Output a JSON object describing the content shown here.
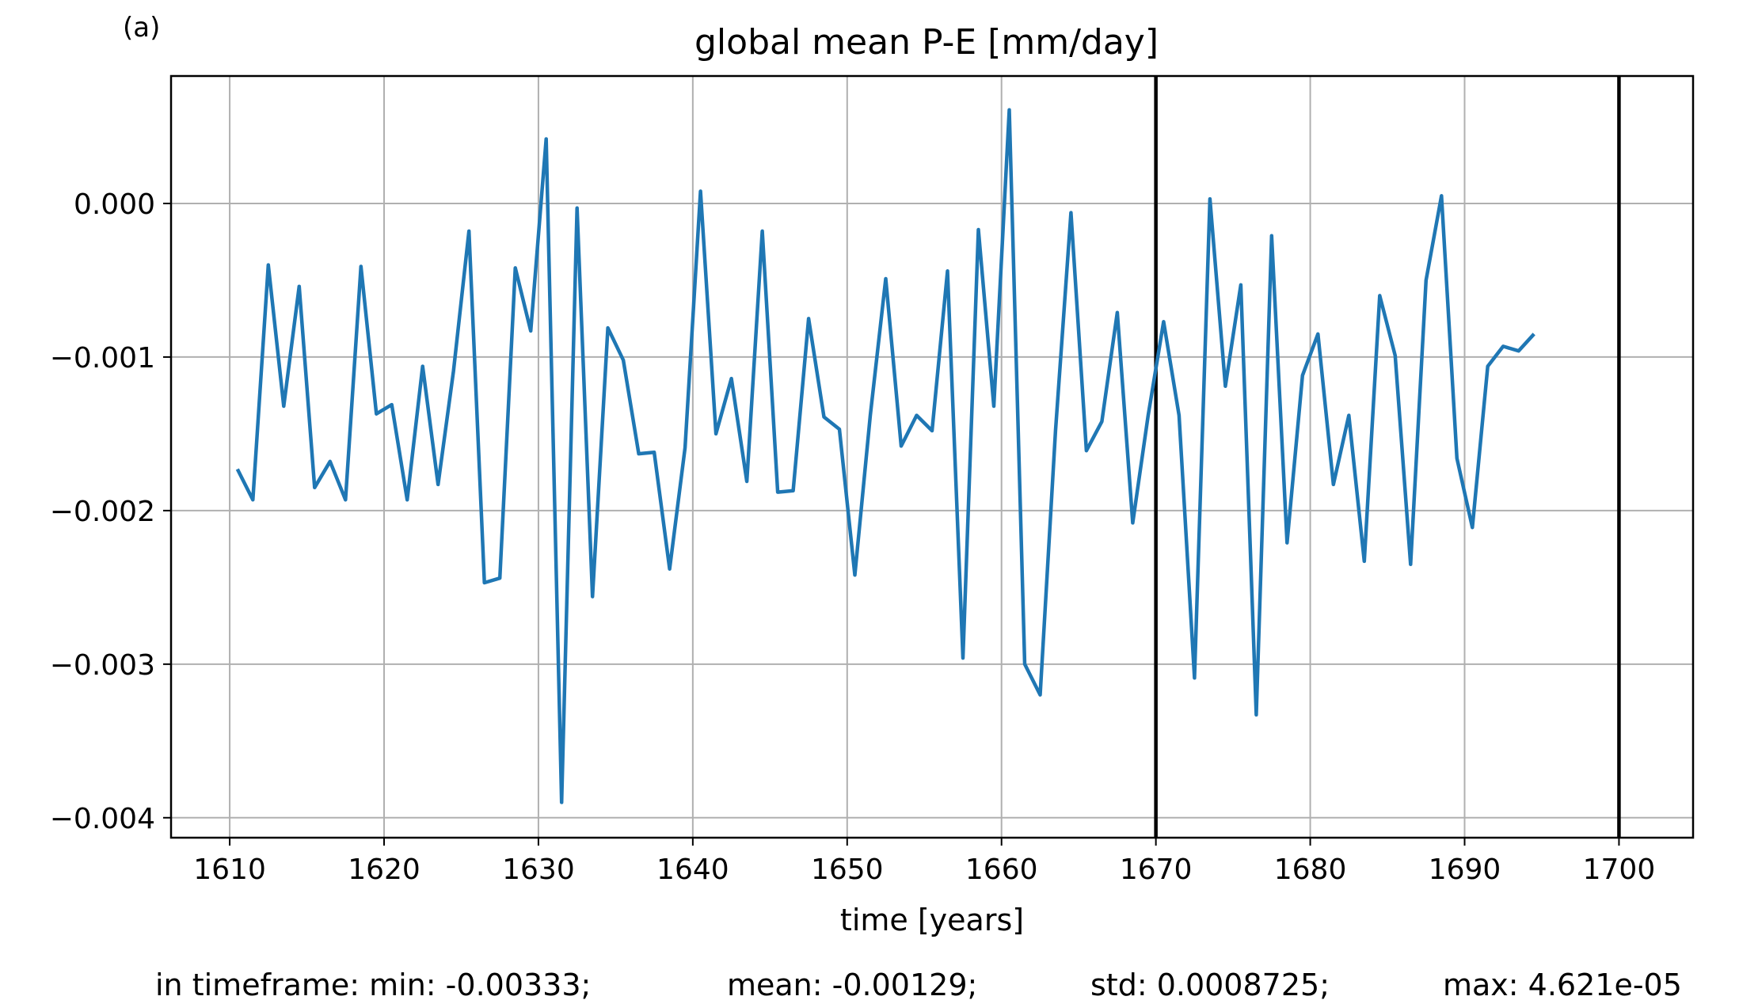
{
  "panel_label": "(a)",
  "footer": {
    "min_text": "in timeframe: min: -0.00333;",
    "mean_text": "mean: -0.00129;",
    "std_text": "std: 0.0008725;",
    "max_text": "max: 4.621e-05"
  },
  "colors": {
    "series": "#1f77b4",
    "grid": "#b0b0b0",
    "axes": "#000000",
    "vline": "#000000"
  },
  "chart_data": {
    "type": "line",
    "title": "global mean P-E [mm/day]",
    "xlabel": "time [years]",
    "ylabel": "",
    "xlim": [
      1606.2,
      1704.8
    ],
    "ylim": [
      -0.00413,
      0.00083
    ],
    "xticks": [
      1610,
      1620,
      1630,
      1640,
      1650,
      1660,
      1670,
      1680,
      1690,
      1700
    ],
    "xtick_labels": [
      "1610",
      "1620",
      "1630",
      "1640",
      "1650",
      "1660",
      "1670",
      "1680",
      "1690",
      "1700"
    ],
    "yticks": [
      0.0,
      -0.001,
      -0.002,
      -0.003,
      -0.004
    ],
    "ytick_labels": [
      "0.000",
      "−0.001",
      "−0.002",
      "−0.003",
      "−0.004"
    ],
    "grid": true,
    "vertical_lines": [
      1670,
      1700
    ],
    "series": [
      {
        "x": [
          1610.5,
          1611.5,
          1612.5,
          1613.5,
          1614.5,
          1615.5,
          1616.5,
          1617.5,
          1618.5,
          1619.5,
          1620.5,
          1621.5,
          1622.5,
          1623.5,
          1624.5,
          1625.5,
          1626.5,
          1627.5,
          1628.5,
          1629.5,
          1630.5,
          1631.5,
          1632.5,
          1633.5,
          1634.5,
          1635.5,
          1636.5,
          1637.5,
          1638.5,
          1639.5,
          1640.5,
          1641.5,
          1642.5,
          1643.5,
          1644.5,
          1645.5,
          1646.5,
          1647.5,
          1648.5,
          1649.5,
          1650.5,
          1651.5,
          1652.5,
          1653.5,
          1654.5,
          1655.5,
          1656.5,
          1657.5,
          1658.5,
          1659.5,
          1660.5,
          1661.5,
          1662.5,
          1663.5,
          1664.5,
          1665.5,
          1666.5,
          1667.5,
          1668.5,
          1669.5,
          1670.5,
          1671.5,
          1672.5,
          1673.5,
          1674.5,
          1675.5,
          1676.5,
          1677.5,
          1678.5,
          1679.5,
          1680.5,
          1681.5,
          1682.5,
          1683.5,
          1684.5,
          1685.5,
          1686.5,
          1687.5,
          1688.5,
          1689.5,
          1690.5,
          1691.5,
          1692.5,
          1693.5,
          1694.5
        ],
        "y": [
          -0.00173,
          -0.00193,
          -0.0004,
          -0.00132,
          -0.00054,
          -0.00185,
          -0.00168,
          -0.00193,
          -0.00041,
          -0.00137,
          -0.00131,
          -0.00193,
          -0.00106,
          -0.00183,
          -0.00109,
          -0.00018,
          -0.00247,
          -0.00244,
          -0.00042,
          -0.00083,
          0.00042,
          -0.0039,
          -3e-05,
          -0.00256,
          -0.00081,
          -0.00102,
          -0.00163,
          -0.00162,
          -0.00238,
          -0.00159,
          8e-05,
          -0.0015,
          -0.00114,
          -0.00181,
          -0.00018,
          -0.00188,
          -0.00187,
          -0.00075,
          -0.00139,
          -0.00147,
          -0.00242,
          -0.00138,
          -0.00049,
          -0.00158,
          -0.00138,
          -0.00148,
          -0.00044,
          -0.00296,
          -0.00017,
          -0.00132,
          0.00061,
          -0.003,
          -0.0032,
          -0.00148,
          -6e-05,
          -0.00161,
          -0.00142,
          -0.00071,
          -0.00208,
          -0.00138,
          -0.00077,
          -0.00138,
          -0.00309,
          3e-05,
          -0.00119,
          -0.00053,
          -0.00333,
          -0.00021,
          -0.00221,
          -0.00112,
          -0.00085,
          -0.00183,
          -0.00138,
          -0.00233,
          -0.0006,
          -0.00099,
          -0.00235,
          -0.0005,
          5e-05,
          -0.00166,
          -0.00211,
          -0.00106,
          -0.00093,
          -0.00096,
          -0.00085
        ]
      }
    ]
  }
}
